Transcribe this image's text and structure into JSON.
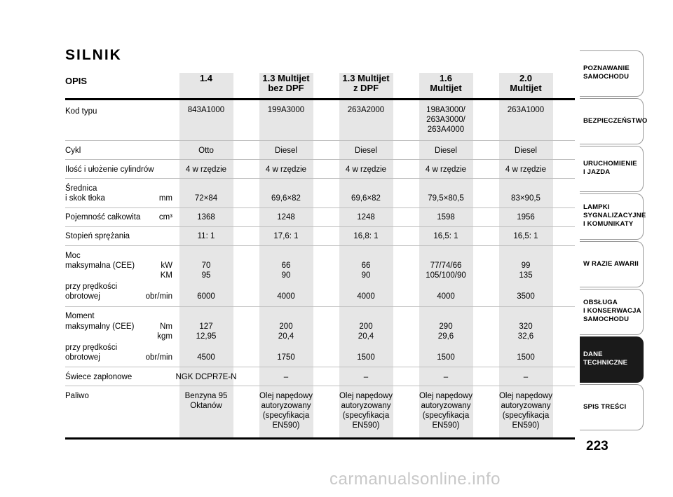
{
  "title": "SILNIK",
  "table": {
    "opis_label": "OPIS",
    "columns": [
      {
        "header": "1.4"
      },
      {
        "header": "1.3 Multijet\nbez DPF"
      },
      {
        "header": "1.3 Multijet\nz DPF"
      },
      {
        "header": "1.6\nMultijet"
      },
      {
        "header": "2.0\nMultijet"
      }
    ],
    "labels": {
      "kod": "Kod typu",
      "cykl": "Cykl",
      "cyl": "Ilość i ułożenie cylindrów",
      "sred1": "Średnica",
      "sred2": "i skok tłoka",
      "sred_unit": "mm",
      "poj": "Pojemność całkowita",
      "poj_unit": "cm³",
      "spr": "Stopień sprężania",
      "moc1": "Moc",
      "moc2": "maksymalna (CEE)",
      "moc_u1": "kW",
      "moc_u2": "KM",
      "mp1": "przy prędkości",
      "mp2": "obrotowej",
      "mp_unit": "obr/min",
      "mom1": "Moment",
      "mom2": "maksymalny (CEE)",
      "mom_u1": "Nm",
      "mom_u2": "kgm",
      "mop1": "przy prędkości",
      "mop2": "obrotowej",
      "mop_unit": "obr/min",
      "swiece": "Świece zapłonowe",
      "paliwo": "Paliwo"
    },
    "rows": {
      "kod": [
        "843A1000",
        "199A3000",
        "263A2000",
        "198A3000/\n263A3000/\n263A4000",
        "263A1000"
      ],
      "cykl": [
        "Otto",
        "Diesel",
        "Diesel",
        "Diesel",
        "Diesel"
      ],
      "cyl": [
        "4 w rzędzie",
        "4 w rzędzie",
        "4 w rzędzie",
        "4 w rzędzie",
        "4 w rzędzie"
      ],
      "sred": [
        "72×84",
        "69,6×82",
        "69,6×82",
        "79,5×80,5",
        "83×90,5"
      ],
      "poj": [
        "1368",
        "1248",
        "1248",
        "1598",
        "1956"
      ],
      "spr": [
        "11: 1",
        "17,6: 1",
        "16,8: 1",
        "16,5: 1",
        "16,5: 1"
      ],
      "moc": [
        "70\n95",
        "66\n90",
        "66\n90",
        "77/74/66\n105/100/90",
        "99\n135"
      ],
      "moc_rpm": [
        "6000",
        "4000",
        "4000",
        "4000",
        "3500"
      ],
      "mom": [
        "127\n12,95",
        "200\n20,4",
        "200\n20,4",
        "290\n29,6",
        "320\n32,6"
      ],
      "mom_rpm": [
        "4500",
        "1750",
        "1500",
        "1500",
        "1500"
      ],
      "swiece": [
        "NGK DCPR7E-N",
        "–",
        "–",
        "–",
        "–"
      ],
      "paliwo": [
        "Benzyna 95\nOktanów",
        "Olej napędowy\nautoryzowany\n(specyfikacja\nEN590)",
        "Olej napędowy\nautoryzowany\n(specyfikacja\nEN590)",
        "Olej napędowy\nautoryzowany\n(specyfikacja\nEN590)",
        "Olej napędowy\nautoryzowany\n(specyfikacja\nEN590)"
      ]
    }
  },
  "sidebar": {
    "tabs": [
      {
        "label": "POZNAWANIE\nSAMOCHODU",
        "active": false
      },
      {
        "label": "BEZPIECZEŃSTWO",
        "active": false
      },
      {
        "label": "URUCHOMIENIE\nI JAZDA",
        "active": false
      },
      {
        "label": "LAMPKI\nSYGNALIZACYJNE\nI KOMUNIKATY",
        "active": false
      },
      {
        "label": "W RAZIE AWARII",
        "active": false
      },
      {
        "label": "OBSŁUGA\nI KONSERWACJA\nSAMOCHODU",
        "active": false
      },
      {
        "label": "DANE\nTECHNICZNE",
        "active": true
      },
      {
        "label": "SPIS TREŚCI",
        "active": false
      }
    ]
  },
  "page_number": "223",
  "watermark": "carmanualsonline.info"
}
